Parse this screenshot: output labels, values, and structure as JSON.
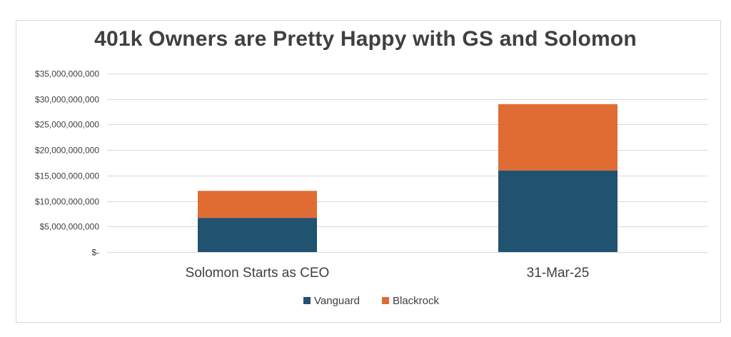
{
  "chart_data": {
    "type": "bar",
    "stacked": true,
    "title": "401k Owners are Pretty Happy with GS and Solomon",
    "xlabel": "",
    "ylabel": "",
    "categories": [
      "Solomon Starts as CEO",
      "31-Mar-25"
    ],
    "series": [
      {
        "name": "Vanguard",
        "color": "#215270",
        "values": [
          6700000000,
          16000000000
        ]
      },
      {
        "name": "Blackrock",
        "color": "#e06c34",
        "values": [
          5300000000,
          13000000000
        ]
      }
    ],
    "ylim": [
      0,
      35000000000
    ],
    "yticks": [
      0,
      5000000000,
      10000000000,
      15000000000,
      20000000000,
      25000000000,
      30000000000,
      35000000000
    ],
    "ytick_labels": [
      "$-",
      "$5,000,000,000",
      "$10,000,000,000",
      "$15,000,000,000",
      "$20,000,000,000",
      "$25,000,000,000",
      "$30,000,000,000",
      "$35,000,000,000"
    ],
    "grid": true,
    "legend_position": "bottom",
    "gridline_color": "#d9d9d9"
  }
}
